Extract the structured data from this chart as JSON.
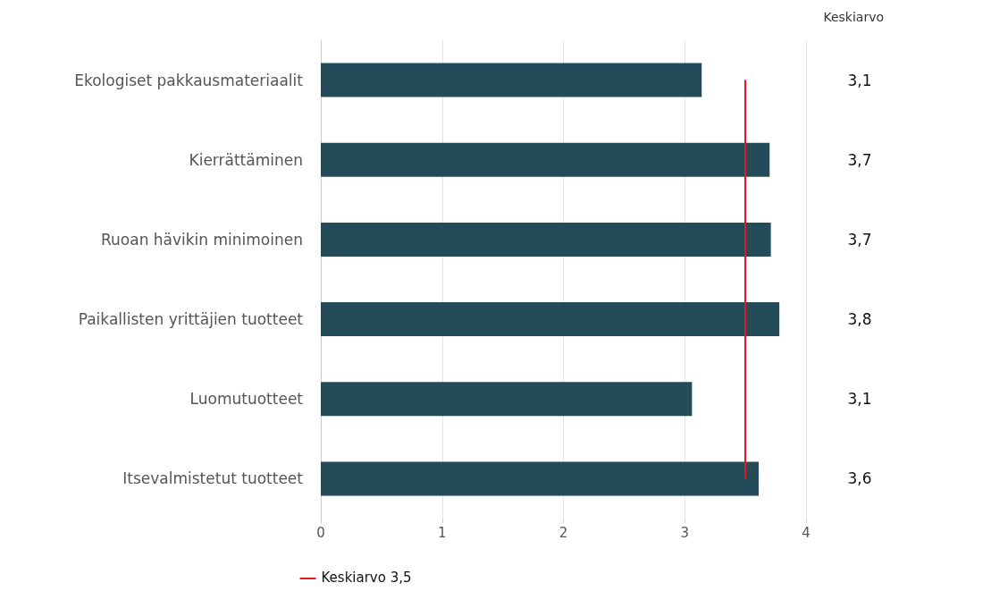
{
  "chart_data": {
    "type": "bar",
    "orientation": "horizontal",
    "categories": [
      "Ekologiset pakkausmateriaalit",
      "Kierrättäminen",
      "Ruoan hävikin minimoinen",
      "Paikallisten yrittäjien tuotteet",
      "Luomutuotteet",
      "Itsevalmistetut tuotteet"
    ],
    "values": [
      3.14,
      3.7,
      3.71,
      3.78,
      3.06,
      3.61
    ],
    "value_labels": [
      "3,1",
      "3,7",
      "3,7",
      "3,8",
      "3,1",
      "3,6"
    ],
    "color": "#234b5a",
    "xlim": [
      0,
      4
    ],
    "xticks": [
      0,
      1,
      2,
      3,
      4
    ],
    "grid": "x",
    "ref_lines": [
      {
        "axis": "x",
        "value": 3.5,
        "label": "Keskiarvo 3,5",
        "color": "#e8161b"
      }
    ],
    "annotations": [
      "Keskiarvo"
    ],
    "legend": "bottom left"
  }
}
